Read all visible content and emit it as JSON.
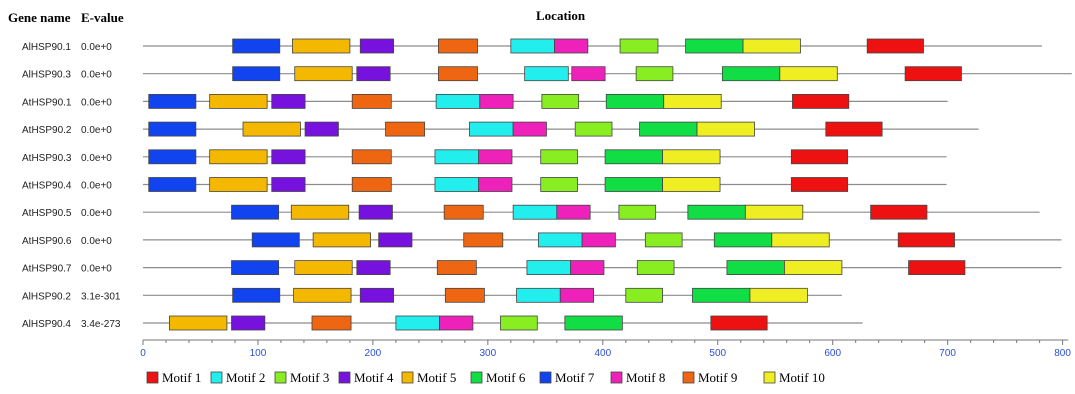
{
  "headers": {
    "gene_name": "Gene name",
    "evalue": "E-value",
    "location": "Location"
  },
  "axis": {
    "ticks": [
      0,
      100,
      200,
      300,
      400,
      500,
      600,
      700,
      800
    ],
    "xmin": 0,
    "xmax": 805
  },
  "motifs": [
    {
      "id": 1,
      "name": "Motif 1",
      "color": "#ee1111"
    },
    {
      "id": 2,
      "name": "Motif 2",
      "color": "#22eeee"
    },
    {
      "id": 3,
      "name": "Motif 3",
      "color": "#88ee22"
    },
    {
      "id": 4,
      "name": "Motif 4",
      "color": "#7711dd"
    },
    {
      "id": 5,
      "name": "Motif 5",
      "color": "#f5b800"
    },
    {
      "id": 6,
      "name": "Motif 6",
      "color": "#11dd44"
    },
    {
      "id": 7,
      "name": "Motif 7",
      "color": "#1144ee"
    },
    {
      "id": 8,
      "name": "Motif 8",
      "color": "#ee22bb"
    },
    {
      "id": 9,
      "name": "Motif 9",
      "color": "#ee6611"
    },
    {
      "id": 10,
      "name": "Motif 10",
      "color": "#eeee22"
    }
  ],
  "chart_data": {
    "type": "motif-map",
    "xlabel": "Location",
    "xlim": [
      0,
      805
    ],
    "genes": [
      {
        "name": "AlHSP90.1",
        "evalue": "0.0e+0",
        "length": 782,
        "motifs": [
          {
            "m": 7,
            "start": 78,
            "end": 119
          },
          {
            "m": 5,
            "start": 130,
            "end": 180
          },
          {
            "m": 4,
            "start": 189,
            "end": 218
          },
          {
            "m": 9,
            "start": 257,
            "end": 291
          },
          {
            "m": 2,
            "start": 320,
            "end": 358
          },
          {
            "m": 8,
            "start": 358,
            "end": 387
          },
          {
            "m": 3,
            "start": 415,
            "end": 448
          },
          {
            "m": 6,
            "start": 472,
            "end": 522
          },
          {
            "m": 10,
            "start": 522,
            "end": 572
          },
          {
            "m": 1,
            "start": 630,
            "end": 679
          }
        ]
      },
      {
        "name": "AlHSP90.3",
        "evalue": "0.0e+0",
        "length": 808,
        "motifs": [
          {
            "m": 7,
            "start": 78,
            "end": 119
          },
          {
            "m": 5,
            "start": 132,
            "end": 182
          },
          {
            "m": 4,
            "start": 186,
            "end": 215
          },
          {
            "m": 9,
            "start": 257,
            "end": 291
          },
          {
            "m": 2,
            "start": 332,
            "end": 370
          },
          {
            "m": 8,
            "start": 373,
            "end": 402
          },
          {
            "m": 3,
            "start": 429,
            "end": 461
          },
          {
            "m": 6,
            "start": 504,
            "end": 554
          },
          {
            "m": 10,
            "start": 554,
            "end": 604
          },
          {
            "m": 1,
            "start": 663,
            "end": 712
          }
        ]
      },
      {
        "name": "AtHSP90.1",
        "evalue": "0.0e+0",
        "length": 700,
        "motifs": [
          {
            "m": 7,
            "start": 5,
            "end": 46
          },
          {
            "m": 5,
            "start": 58,
            "end": 108
          },
          {
            "m": 4,
            "start": 112,
            "end": 141
          },
          {
            "m": 9,
            "start": 182,
            "end": 216
          },
          {
            "m": 2,
            "start": 255,
            "end": 293
          },
          {
            "m": 8,
            "start": 293,
            "end": 322
          },
          {
            "m": 3,
            "start": 347,
            "end": 379
          },
          {
            "m": 6,
            "start": 403,
            "end": 453
          },
          {
            "m": 10,
            "start": 453,
            "end": 503
          },
          {
            "m": 1,
            "start": 565,
            "end": 614
          }
        ]
      },
      {
        "name": "AtHSP90.2",
        "evalue": "0.0e+0",
        "length": 727,
        "motifs": [
          {
            "m": 7,
            "start": 5,
            "end": 46
          },
          {
            "m": 5,
            "start": 87,
            "end": 137
          },
          {
            "m": 4,
            "start": 141,
            "end": 170
          },
          {
            "m": 9,
            "start": 211,
            "end": 245
          },
          {
            "m": 2,
            "start": 284,
            "end": 322
          },
          {
            "m": 8,
            "start": 322,
            "end": 351
          },
          {
            "m": 3,
            "start": 376,
            "end": 408
          },
          {
            "m": 6,
            "start": 432,
            "end": 482
          },
          {
            "m": 10,
            "start": 482,
            "end": 532
          },
          {
            "m": 1,
            "start": 594,
            "end": 643
          }
        ]
      },
      {
        "name": "AtHSP90.3",
        "evalue": "0.0e+0",
        "length": 699,
        "motifs": [
          {
            "m": 7,
            "start": 5,
            "end": 46
          },
          {
            "m": 5,
            "start": 58,
            "end": 108
          },
          {
            "m": 4,
            "start": 112,
            "end": 141
          },
          {
            "m": 9,
            "start": 182,
            "end": 216
          },
          {
            "m": 2,
            "start": 254,
            "end": 292
          },
          {
            "m": 8,
            "start": 292,
            "end": 321
          },
          {
            "m": 3,
            "start": 346,
            "end": 378
          },
          {
            "m": 6,
            "start": 402,
            "end": 452
          },
          {
            "m": 10,
            "start": 452,
            "end": 502
          },
          {
            "m": 1,
            "start": 564,
            "end": 613
          }
        ]
      },
      {
        "name": "AtHSP90.4",
        "evalue": "0.0e+0",
        "length": 699,
        "motifs": [
          {
            "m": 7,
            "start": 5,
            "end": 46
          },
          {
            "m": 5,
            "start": 58,
            "end": 108
          },
          {
            "m": 4,
            "start": 112,
            "end": 141
          },
          {
            "m": 9,
            "start": 182,
            "end": 216
          },
          {
            "m": 2,
            "start": 254,
            "end": 292
          },
          {
            "m": 8,
            "start": 292,
            "end": 321
          },
          {
            "m": 3,
            "start": 346,
            "end": 378
          },
          {
            "m": 6,
            "start": 402,
            "end": 452
          },
          {
            "m": 10,
            "start": 452,
            "end": 502
          },
          {
            "m": 1,
            "start": 564,
            "end": 613
          }
        ]
      },
      {
        "name": "AtHSP90.5",
        "evalue": "0.0e+0",
        "length": 780,
        "motifs": [
          {
            "m": 7,
            "start": 77,
            "end": 118
          },
          {
            "m": 5,
            "start": 129,
            "end": 179
          },
          {
            "m": 4,
            "start": 188,
            "end": 217
          },
          {
            "m": 9,
            "start": 262,
            "end": 296
          },
          {
            "m": 2,
            "start": 322,
            "end": 360
          },
          {
            "m": 8,
            "start": 360,
            "end": 389
          },
          {
            "m": 3,
            "start": 414,
            "end": 446
          },
          {
            "m": 6,
            "start": 474,
            "end": 524
          },
          {
            "m": 10,
            "start": 524,
            "end": 574
          },
          {
            "m": 1,
            "start": 633,
            "end": 682
          }
        ]
      },
      {
        "name": "AtHSP90.6",
        "evalue": "0.0e+0",
        "length": 799,
        "motifs": [
          {
            "m": 7,
            "start": 95,
            "end": 136
          },
          {
            "m": 5,
            "start": 148,
            "end": 198
          },
          {
            "m": 4,
            "start": 205,
            "end": 234
          },
          {
            "m": 9,
            "start": 279,
            "end": 313
          },
          {
            "m": 2,
            "start": 344,
            "end": 382
          },
          {
            "m": 8,
            "start": 382,
            "end": 411
          },
          {
            "m": 3,
            "start": 437,
            "end": 469
          },
          {
            "m": 6,
            "start": 497,
            "end": 547
          },
          {
            "m": 10,
            "start": 547,
            "end": 597
          },
          {
            "m": 1,
            "start": 657,
            "end": 706
          }
        ]
      },
      {
        "name": "AtHSP90.7",
        "evalue": "0.0e+0",
        "length": 799,
        "motifs": [
          {
            "m": 7,
            "start": 77,
            "end": 118
          },
          {
            "m": 5,
            "start": 132,
            "end": 182
          },
          {
            "m": 4,
            "start": 186,
            "end": 215
          },
          {
            "m": 9,
            "start": 256,
            "end": 290
          },
          {
            "m": 2,
            "start": 334,
            "end": 372
          },
          {
            "m": 8,
            "start": 372,
            "end": 401
          },
          {
            "m": 3,
            "start": 430,
            "end": 462
          },
          {
            "m": 6,
            "start": 508,
            "end": 558
          },
          {
            "m": 10,
            "start": 558,
            "end": 608
          },
          {
            "m": 1,
            "start": 666,
            "end": 715
          }
        ]
      },
      {
        "name": "AlHSP90.2",
        "evalue": "3.1e-301",
        "length": 608,
        "motifs": [
          {
            "m": 7,
            "start": 78,
            "end": 119
          },
          {
            "m": 5,
            "start": 131,
            "end": 181
          },
          {
            "m": 4,
            "start": 189,
            "end": 218
          },
          {
            "m": 9,
            "start": 263,
            "end": 297
          },
          {
            "m": 2,
            "start": 325,
            "end": 363
          },
          {
            "m": 8,
            "start": 363,
            "end": 392
          },
          {
            "m": 3,
            "start": 420,
            "end": 452
          },
          {
            "m": 6,
            "start": 478,
            "end": 528
          },
          {
            "m": 10,
            "start": 528,
            "end": 578
          }
        ]
      },
      {
        "name": "AlHSP90.4",
        "evalue": "3.4e-273",
        "length": 626,
        "motifs": [
          {
            "m": 5,
            "start": 23,
            "end": 73
          },
          {
            "m": 4,
            "start": 77,
            "end": 106
          },
          {
            "m": 9,
            "start": 147,
            "end": 181
          },
          {
            "m": 2,
            "start": 220,
            "end": 258
          },
          {
            "m": 8,
            "start": 258,
            "end": 287
          },
          {
            "m": 3,
            "start": 311,
            "end": 343
          },
          {
            "m": 6,
            "start": 367,
            "end": 417
          },
          {
            "m": 1,
            "start": 494,
            "end": 543
          }
        ]
      }
    ]
  }
}
